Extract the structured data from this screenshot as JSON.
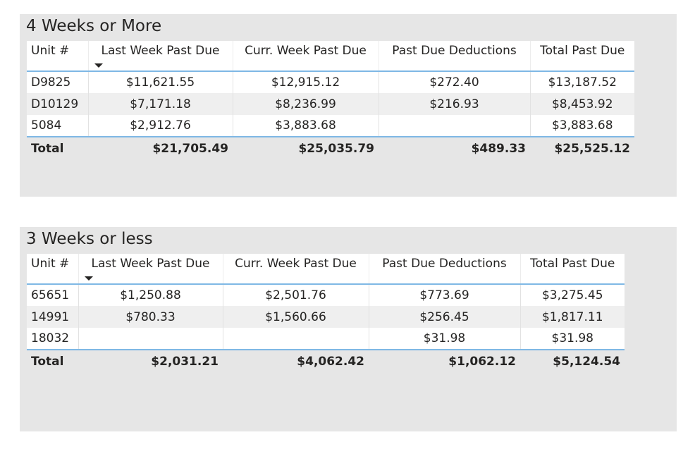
{
  "visuals": [
    {
      "title": "4 Weeks or More",
      "columns": [
        "Unit #",
        "Last Week Past Due",
        "Curr. Week Past Due",
        "Past Due Deductions",
        "Total Past Due"
      ],
      "rows": [
        [
          "D9825",
          "$11,621.55",
          "$12,915.12",
          "$272.40",
          "$13,187.52"
        ],
        [
          "D10129",
          "$7,171.18",
          "$8,236.99",
          "$216.93",
          "$8,453.92"
        ],
        [
          "5084",
          "$2,912.76",
          "$3,883.68",
          "",
          "$3,883.68"
        ]
      ],
      "total": [
        "Total",
        "$21,705.49",
        "$25,035.79",
        "$489.33",
        "$25,525.12"
      ]
    },
    {
      "title": "3 Weeks or less",
      "columns": [
        "Unit #",
        "Last Week Past Due",
        "Curr. Week Past Due",
        "Past Due Deductions",
        "Total Past Due"
      ],
      "rows": [
        [
          "65651",
          "$1,250.88",
          "$2,501.76",
          "$773.69",
          "$3,275.45"
        ],
        [
          "14991",
          "$780.33",
          "$1,560.66",
          "$256.45",
          "$1,817.11"
        ],
        [
          "18032",
          "",
          "",
          "$31.98",
          "$31.98"
        ]
      ],
      "total": [
        "Total",
        "$2,031.21",
        "$4,062.42",
        "$1,062.12",
        "$5,124.54"
      ]
    }
  ],
  "sorted_column": "Last Week Past Due",
  "sort_icon": "caret-down-icon",
  "colors": {
    "panel_background": "#e6e6e6",
    "accent_line": "#7fb8e5",
    "alt_row": "#efefef"
  }
}
